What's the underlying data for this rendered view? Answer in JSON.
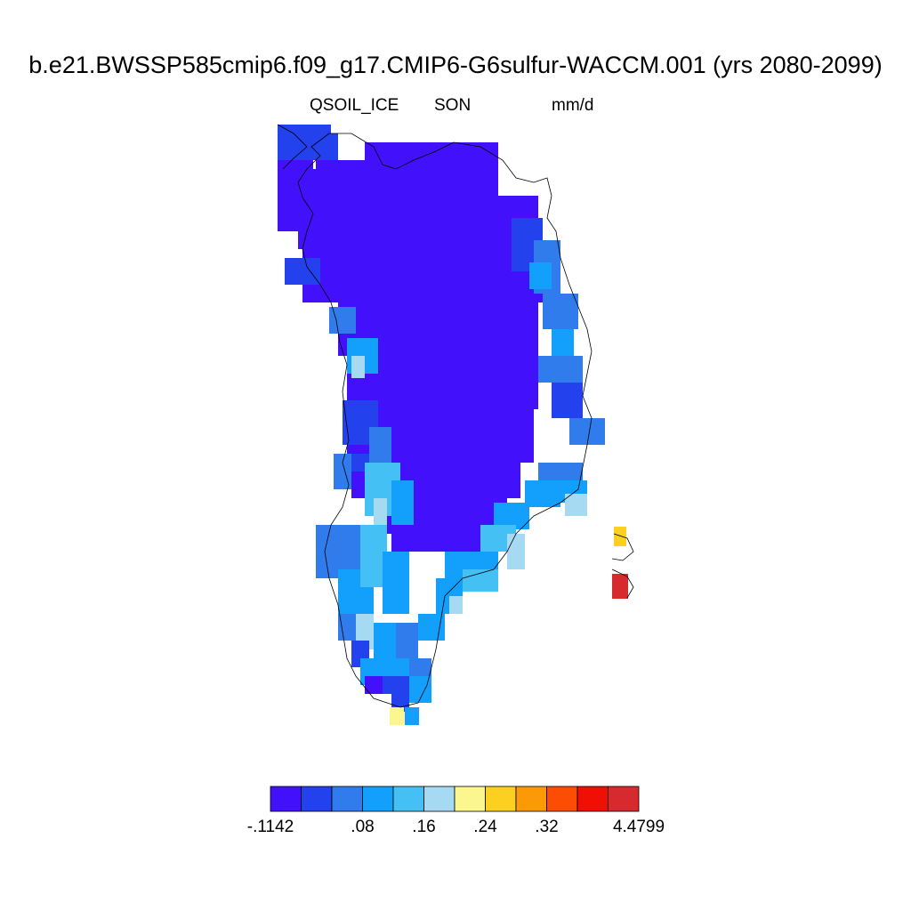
{
  "title": "b.e21.BWSSP585cmip6.f09_g17.CMIP6-G6sulfur-WACCM.001 (yrs 2080-2099)",
  "variable": "QSOIL_ICE",
  "season": "SON",
  "units": "mm/d",
  "colorbar": {
    "colors": [
      "#4210fa",
      "#2341ed",
      "#317ced",
      "#12a0fc",
      "#45c0f5",
      "#a6daf3",
      "#fbf68d",
      "#fcd020",
      "#fb9a06",
      "#fc4d04",
      "#f00e05",
      "#d72a2e"
    ],
    "tick_labels": [
      {
        "text": "-.1142",
        "boundary": 0
      },
      {
        "text": ".08",
        "boundary": 3
      },
      {
        "text": ".16",
        "boundary": 5
      },
      {
        "text": ".24",
        "boundary": 7
      },
      {
        "text": ".32",
        "boundary": 9
      },
      {
        "text": "4.4799",
        "boundary": 12
      }
    ]
  }
}
